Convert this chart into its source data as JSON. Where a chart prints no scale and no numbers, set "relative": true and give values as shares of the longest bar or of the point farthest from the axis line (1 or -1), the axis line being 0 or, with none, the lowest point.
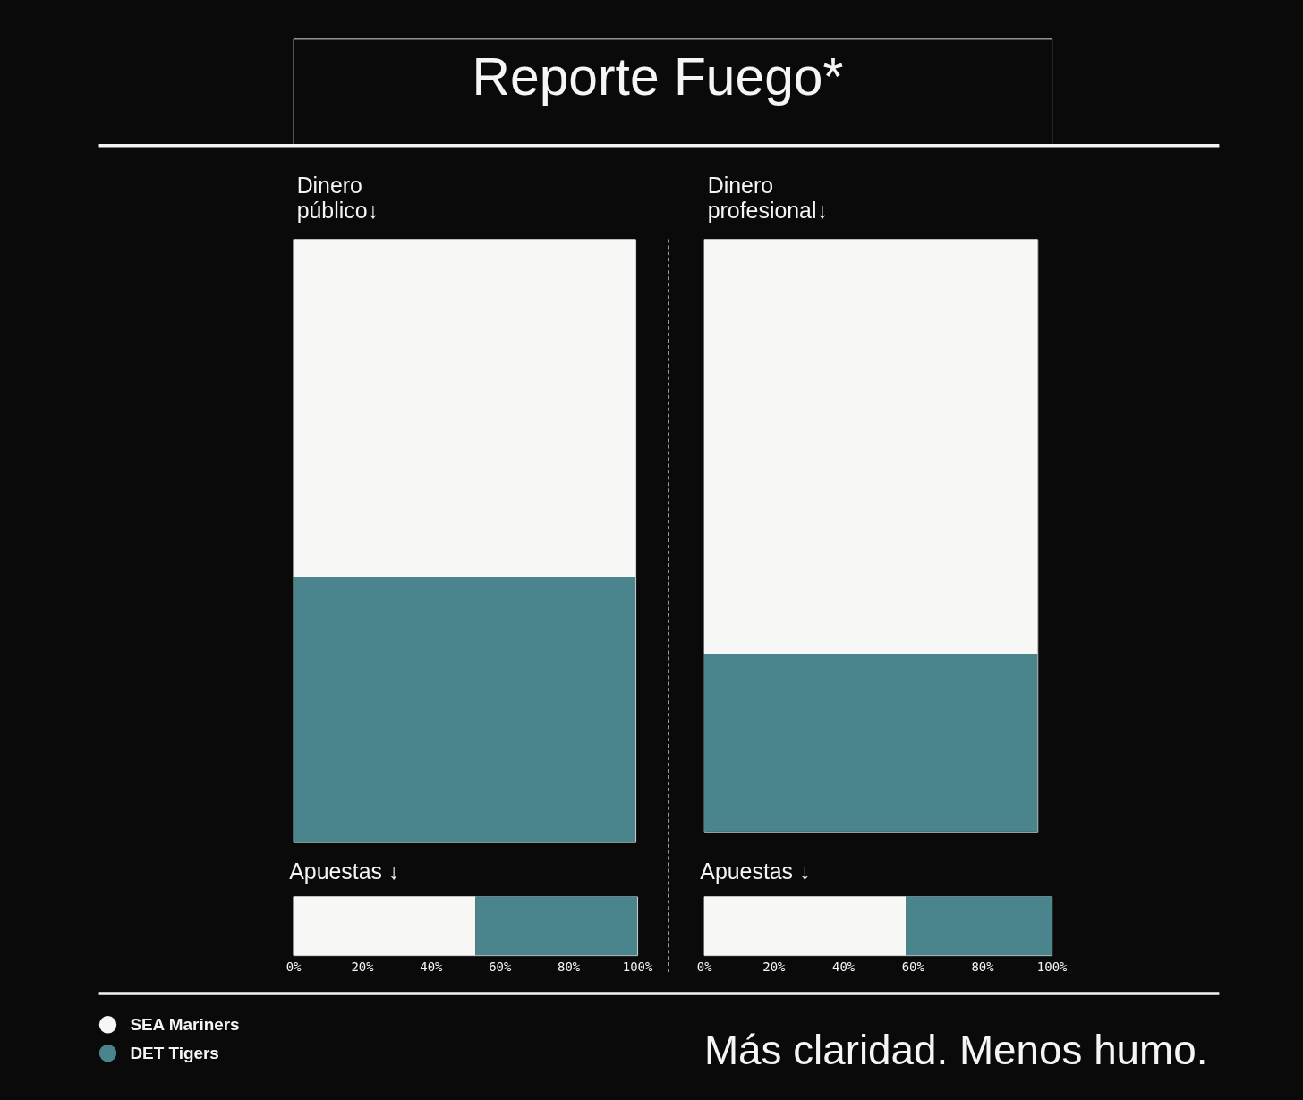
{
  "chart_data": [
    {
      "type": "other",
      "title": "Reporte Fuego*",
      "annotations": [
        "Más claridad. Menos humo."
      ]
    },
    {
      "type": "bar",
      "title": "Dinero público↓",
      "stacked": true,
      "relative": true,
      "categories": [
        null
      ],
      "series": [
        {
          "name": "DET Tigers",
          "color": "#4a858e",
          "values": [
            0.44
          ]
        },
        {
          "name": "SEA Mariners",
          "color": "#f7f7f5",
          "values": [
            0.56
          ]
        }
      ],
      "legend": "bottom left"
    },
    {
      "type": "bar",
      "title": "Dinero profesional↓",
      "stacked": true,
      "relative": true,
      "categories": [
        null
      ],
      "series": [
        {
          "name": "DET Tigers",
          "color": "#4a858e",
          "values": [
            0.3
          ]
        },
        {
          "name": "SEA Mariners",
          "color": "#f7f7f5",
          "values": [
            0.7
          ]
        }
      ]
    },
    {
      "type": "bar",
      "title": "Apuestas ↓",
      "orientation": "horizontal",
      "stacked": true,
      "categories": [
        null
      ],
      "series": [
        {
          "name": "SEA Mariners",
          "color": "#f7f7f5",
          "values": [
            53
          ]
        },
        {
          "name": "DET Tigers",
          "color": "#4a858e",
          "values": [
            47
          ]
        }
      ],
      "xlim": [
        0,
        100
      ],
      "xticks": [
        {
          "value": 0,
          "label": "0%"
        },
        {
          "value": 20,
          "label": "20%"
        },
        {
          "value": 40,
          "label": "40%"
        },
        {
          "value": 60,
          "label": "60%"
        },
        {
          "value": 80,
          "label": "80%"
        },
        {
          "value": 100,
          "label": "100%"
        }
      ]
    },
    {
      "type": "bar",
      "title": "Apuestas ↓",
      "orientation": "horizontal",
      "stacked": true,
      "categories": [
        null
      ],
      "series": [
        {
          "name": "SEA Mariners",
          "color": "#f7f7f5",
          "values": [
            58
          ]
        },
        {
          "name": "DET Tigers",
          "color": "#4a858e",
          "values": [
            42
          ]
        }
      ],
      "xlim": [
        0,
        100
      ],
      "xticks": [
        {
          "value": 0,
          "label": "0%"
        },
        {
          "value": 20,
          "label": "20%"
        },
        {
          "value": 40,
          "label": "40%"
        },
        {
          "value": 60,
          "label": "60%"
        },
        {
          "value": 80,
          "label": "80%"
        },
        {
          "value": 100,
          "label": "100%"
        }
      ]
    }
  ]
}
